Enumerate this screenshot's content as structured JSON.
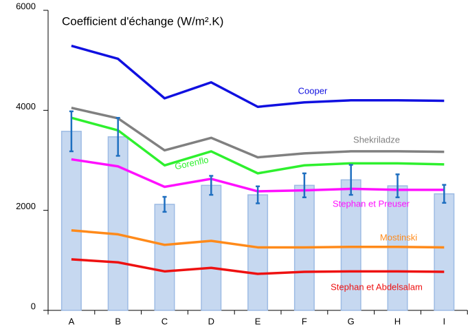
{
  "chart_data": {
    "type": "bar",
    "title": "Coefficient d'échange (W/m².K)",
    "categories": [
      "A",
      "B",
      "C",
      "D",
      "E",
      "F",
      "G",
      "H",
      "I"
    ],
    "bars": {
      "color": "#c6d8f0",
      "error_color": "#1f6fc0",
      "values": [
        3580,
        3470,
        2120,
        2500,
        2310,
        2500,
        2610,
        2490,
        2330
      ],
      "errors": [
        400,
        380,
        150,
        190,
        170,
        240,
        300,
        230,
        180
      ]
    },
    "lines": [
      {
        "name": "Cooper",
        "color": "#1010e0",
        "values": [
          5290,
          5030,
          4240,
          4560,
          4070,
          4160,
          4200,
          4200,
          4190
        ]
      },
      {
        "name": "Shekriladze",
        "color": "#808080",
        "values": [
          4050,
          3840,
          3200,
          3450,
          3060,
          3140,
          3180,
          3180,
          3170
        ]
      },
      {
        "name": "Gorenflo",
        "color": "#2ef02e",
        "values": [
          3850,
          3600,
          2900,
          3180,
          2740,
          2900,
          2940,
          2940,
          2920
        ]
      },
      {
        "name": "Stephan et Preuser",
        "color": "#ff10ff",
        "values": [
          3020,
          2880,
          2470,
          2630,
          2380,
          2400,
          2430,
          2410,
          2410
        ]
      },
      {
        "name": "Mostinski",
        "color": "#ff8a1a",
        "values": [
          1600,
          1520,
          1310,
          1390,
          1260,
          1260,
          1270,
          1270,
          1260
        ]
      },
      {
        "name": "Stephan et Abdelsalam",
        "color": "#ee1111",
        "values": [
          1020,
          960,
          780,
          850,
          730,
          770,
          780,
          780,
          770
        ]
      }
    ],
    "ylim": [
      0,
      6000
    ],
    "yticks": [
      0,
      2000,
      4000,
      6000
    ]
  }
}
